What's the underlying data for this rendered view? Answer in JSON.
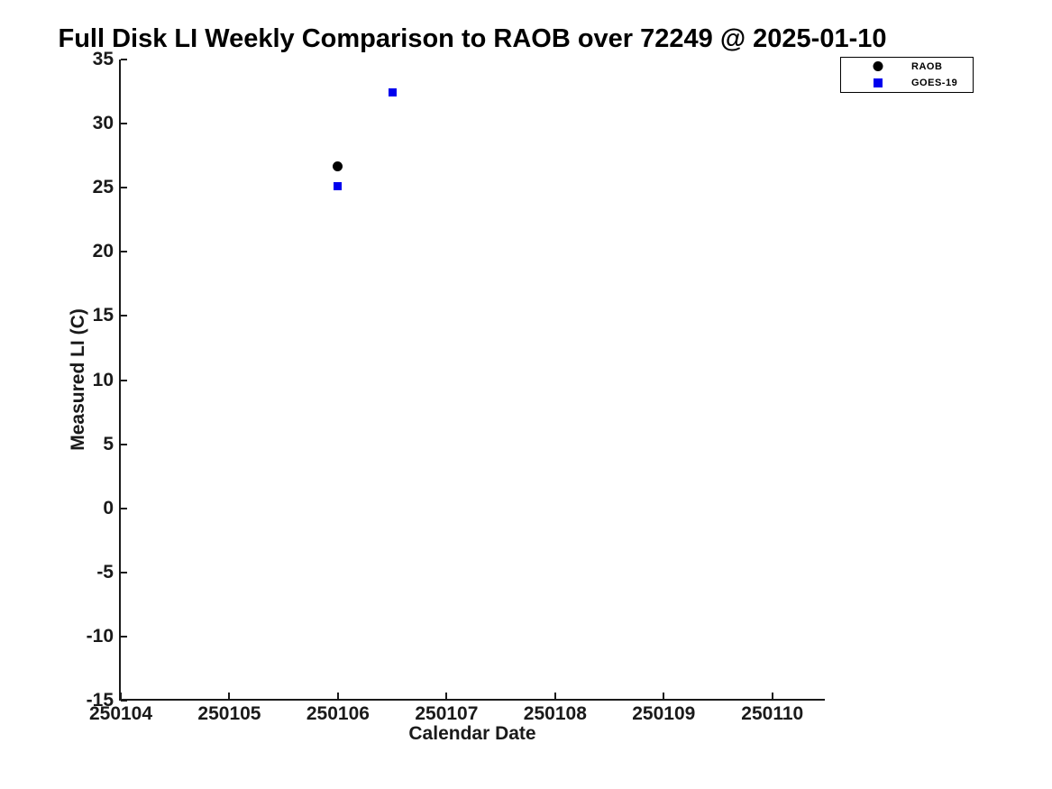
{
  "figure": {
    "background": "#ffffff"
  },
  "colors": {
    "axis": "#1a1a1a",
    "raob": "#000000",
    "goes19": "#0000ee"
  },
  "chart_data": {
    "type": "scatter",
    "title": "Full Disk LI Weekly Comparison to RAOB over 72249 @ 2025-01-10",
    "xlabel": "Calendar Date",
    "ylabel": "Measured LI (C)",
    "xlim": [
      250104,
      250110.5
    ],
    "ylim": [
      -15,
      35
    ],
    "xticks": [
      250104,
      250105,
      250106,
      250107,
      250108,
      250109,
      250110
    ],
    "yticks": [
      35,
      30,
      25,
      20,
      15,
      10,
      5,
      0,
      -5,
      -10,
      -15
    ],
    "grid": false,
    "legend": {
      "position": "top-right-outside-plot",
      "entries": [
        "RAOB",
        "GOES-19"
      ]
    },
    "series": [
      {
        "name": "RAOB",
        "marker": "circle",
        "color": "#000000",
        "marker_size": 11,
        "points": [
          {
            "x": 250106.0,
            "y": 26.7
          }
        ]
      },
      {
        "name": "GOES-19",
        "marker": "square",
        "color": "#0000ee",
        "marker_size": 9,
        "points": [
          {
            "x": 250106.0,
            "y": 25.1
          },
          {
            "x": 250106.5,
            "y": 32.4
          }
        ]
      }
    ]
  }
}
